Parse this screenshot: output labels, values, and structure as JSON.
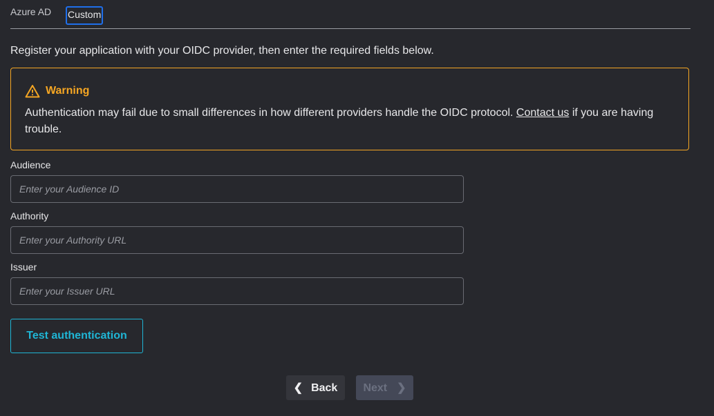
{
  "tabs": [
    {
      "label": "Azure AD"
    },
    {
      "label": "Custom",
      "active": true
    }
  ],
  "intro": "Register your application with your OIDC provider, then enter the required fields below.",
  "warning": {
    "icon": "warning-triangle-icon",
    "title": "Warning",
    "body_before": "Authentication may fail due to small differences in how different providers handle the OIDC protocol. ",
    "link": "Contact us",
    "body_after": " if you are having trouble.",
    "color": "#f5a623"
  },
  "fields": [
    {
      "label": "Audience",
      "value": "",
      "placeholder": "Enter your Audience ID"
    },
    {
      "label": "Authority",
      "value": "",
      "placeholder": "Enter your Authority URL"
    },
    {
      "label": "Issuer",
      "value": "",
      "placeholder": "Enter your Issuer URL"
    }
  ],
  "test_button": "Test authentication",
  "nav": {
    "back": "Back",
    "next": "Next",
    "next_disabled": true
  },
  "colors": {
    "accent": "#1fb6d6",
    "background": "#27282d"
  }
}
